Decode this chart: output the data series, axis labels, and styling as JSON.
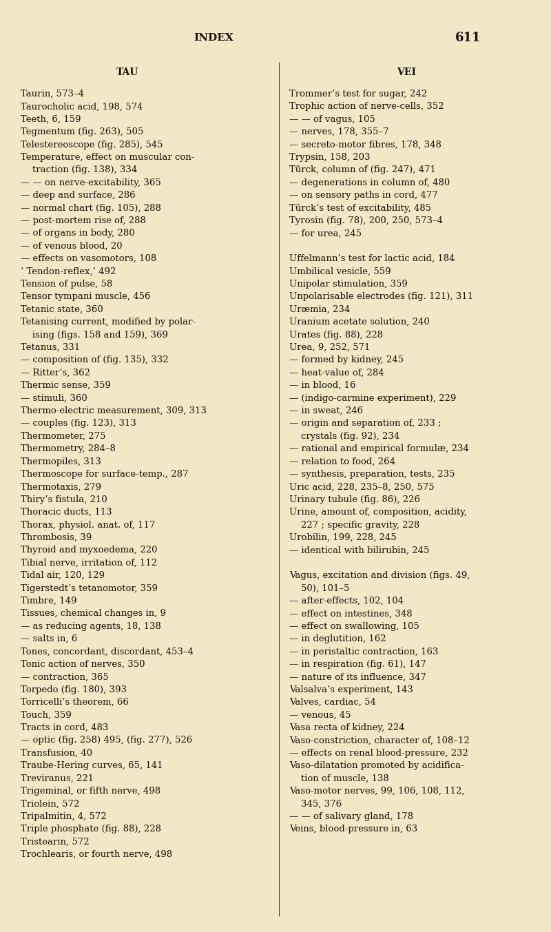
{
  "bg_color": "#f2e8c8",
  "text_color": "#1a1208",
  "page_title": "INDEX",
  "page_number": "611",
  "col_header_left": "TAU",
  "col_header_right": "VEI",
  "left_column": [
    "Taurin, 573–4",
    "Taurocholic acid, 198, 574",
    "Teeth, 6, 159",
    "Tegmentum (fig. 263), 505",
    "Telestereoscope (fig. 285), 545",
    "Temperature, effect on muscular con-",
    "    traction (fig. 138), 334",
    "— — on nerve-excitability, 365",
    "— deep and surface, 286",
    "— normal chart (fig. 105), 288",
    "— post-mortem rise of, 288",
    "— of organs in body, 280",
    "— of venous blood, 20",
    "— effects on vasomotors, 108",
    "‘ Tendon-reflex,’ 492",
    "Tension of pulse, 58",
    "Tensor tympani muscle, 456",
    "Tetanic state, 360",
    "Tetanising current, modified by polar-",
    "    ising (figs. 158 and 159), 369",
    "Tetanus, 331",
    "— composition of (fig. 135), 332",
    "— Ritter’s, 362",
    "Thermic sense, 359",
    "— stimuli, 360",
    "Thermo-electric measurement, 309, 313",
    "— couples (fig. 123), 313",
    "Thermometer, 275",
    "Thermometry, 284–8",
    "Thermopiles, 313",
    "Thermoscope for surface-temp., 287",
    "Thermotaxis, 279",
    "Thiry’s fistula, 210",
    "Thoracic ducts, 113",
    "Thorax, physiol. anat. of, 117",
    "Thrombosis, 39",
    "Thyroid and myxoedema, 220",
    "Tibial nerve, irritation of, 112",
    "Tidal air, 120, 129",
    "Tigerstedt’s tetanomotor, 359",
    "Timbre, 149",
    "Tissues, chemical changes in, 9",
    "— as reducing agents, 18, 138",
    "— salts in, 6",
    "Tones, concordant, discordant, 453–4",
    "Tonic action of nerves, 350",
    "— contraction, 365",
    "Torpedo (fig. 180), 393",
    "Torricelli’s theorem, 66",
    "Touch, 359",
    "Tracts in cord, 483",
    "— optic (fig. 258) 495, (fig. 277), 526",
    "Transfusion, 40",
    "Traube-Hering curves, 65, 141",
    "Treviranus, 221",
    "Trigeminal, or fifth nerve, 498",
    "Triolein, 572",
    "Tripalmitin, 4, 572",
    "Triple phosphate (fig. 88), 228",
    "Tristearin, 572",
    "Trochlearis, or fourth nerve, 498"
  ],
  "right_column": [
    "Trommer’s test for sugar, 242",
    "Trophic action of nerve-cells, 352",
    "— — of vagus, 105",
    "— nerves, 178, 355–7",
    "— secreto-motor fibres, 178, 348",
    "Trypsin, 158, 203",
    "Türck, column of (fig. 247), 471",
    "— degenerations in column of, 480",
    "— on sensory paths in cord, 477",
    "Türck’s test of excitability, 485",
    "Tyrosin (fig. 78), 200, 250, 573–4",
    "— for urea, 245",
    "",
    "Uffelmann’s test for lactic acid, 184",
    "Umbilical vesicle, 559",
    "Unipolar stimulation, 359",
    "Unpolarisable electrodes (fig. 121), 311",
    "Uræmia, 234",
    "Uranium acetate solution, 240",
    "Urates (fig. 88), 228",
    "Urea, 9, 252, 571",
    "— formed by kidney, 245",
    "— heat-value of, 284",
    "— in blood, 16",
    "— (indigo-carmine experiment), 229",
    "— in sweat, 246",
    "— origin and separation of, 233 ;",
    "    crystals (fig. 92), 234",
    "— rational and empirical formulæ, 234",
    "— relation to food, 264",
    "— synthesis, preparation, tests, 235",
    "Uric acid, 228, 235–8, 250, 575",
    "Urinary tubule (fig. 86), 226",
    "Urine, amount of, composition, acidity,",
    "    227 ; specific gravity, 228",
    "Urobilin, 199, 228, 245",
    "— identical with bilirubin, 245",
    "",
    "Vagus, excitation and division (figs. 49,",
    "    50), 101–5",
    "— after-effects, 102, 104",
    "— effect on intestines, 348",
    "— effect on swallowing, 105",
    "— in deglutition, 162",
    "— in peristaltic contraction, 163",
    "— in respiration (fig. 61), 147",
    "— nature of its influence, 347",
    "Valsalva’s experiment, 143",
    "Valves, cardiac, 54",
    "— venous, 45",
    "Vasa recta of kidney, 224",
    "Vaso-constriction, character of, 108–12",
    "— effects on renal blood-pressure, 232",
    "Vaso-dilatation promoted by acidifica-",
    "    tion of muscle, 138",
    "Vaso-motor nerves, 99, 106, 108, 112,",
    "    345, 376",
    "— — of salivary gland, 178",
    "Veins, blood-pressure in, 63"
  ],
  "figwidth": 8.0,
  "figheight": 13.53,
  "dpi": 100
}
